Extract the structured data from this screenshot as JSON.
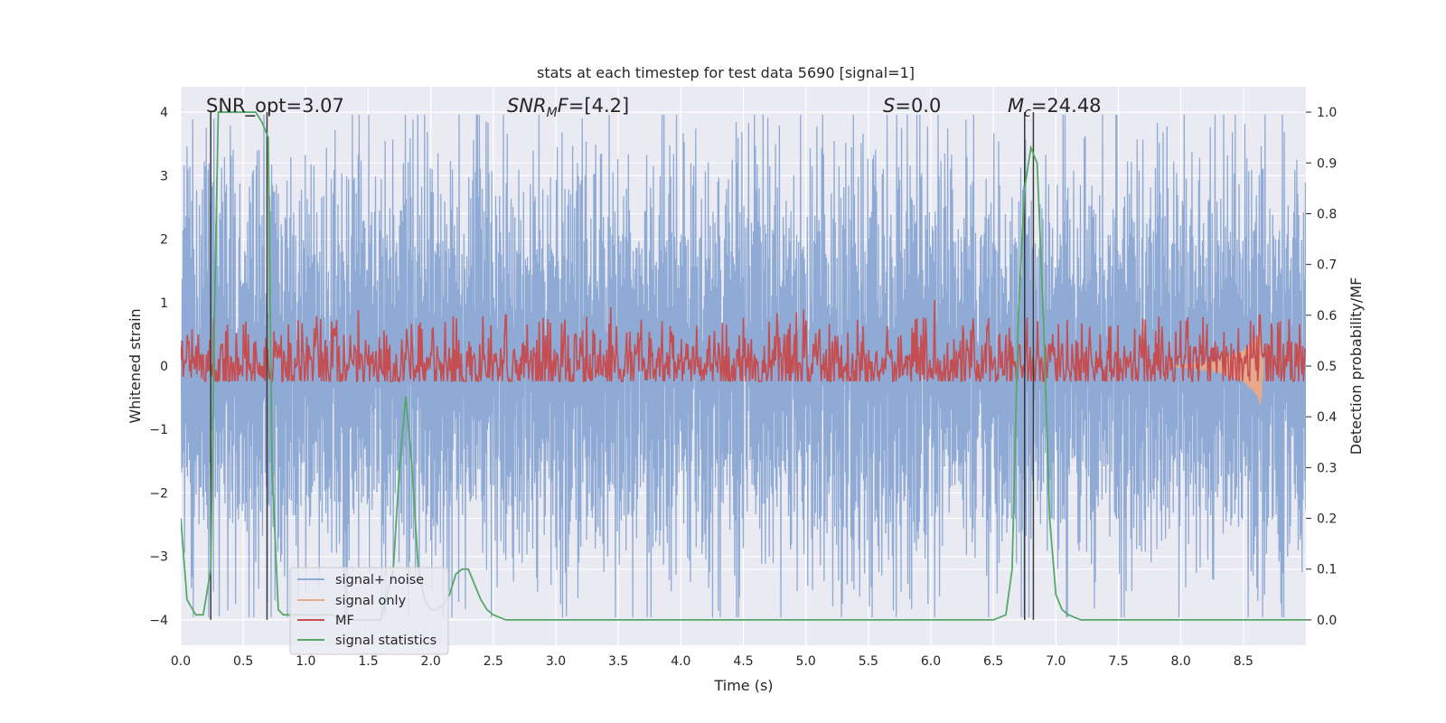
{
  "chart_data": {
    "type": "line",
    "title": "stats at each timestep for test data 5690 [signal=1]",
    "xlabel": "Time (s)",
    "ylabel": "Whitened strain",
    "y2label": "Detection probability/MF",
    "xlim": [
      0.0,
      9.0
    ],
    "ylim": [
      -4.4,
      4.4
    ],
    "y2lim": [
      -0.05,
      1.05
    ],
    "xticks": [
      "0.0",
      "0.5",
      "1.0",
      "1.5",
      "2.0",
      "2.5",
      "3.0",
      "3.5",
      "4.0",
      "4.5",
      "5.0",
      "5.5",
      "6.0",
      "6.5",
      "7.0",
      "7.5",
      "8.0",
      "8.5"
    ],
    "yticks": [
      "−4",
      "−3",
      "−2",
      "−1",
      "0",
      "1",
      "2",
      "3",
      "4"
    ],
    "y2ticks": [
      "0.0",
      "0.1",
      "0.2",
      "0.3",
      "0.4",
      "0.5",
      "0.6",
      "0.7",
      "0.8",
      "0.9",
      "1.0"
    ],
    "grid": true,
    "legend_position": "lower-left",
    "annotations": {
      "snr_opt": "SNR_opt=3.07",
      "snr_mf_name": "SNR",
      "snr_mf_sub": "M",
      "snr_mf_f": "F",
      "snr_mf_value": "=[4.2]",
      "s_name": "S",
      "s_value": "=0.0",
      "mc_name": "M",
      "mc_sub": "c",
      "mc_value": "=24.48"
    },
    "vertical_lines_x": [
      0.24,
      0.69,
      6.75,
      6.82
    ],
    "series": [
      {
        "name": "signal+ noise",
        "color": "#8faad4",
        "axis": "left",
        "kind": "noise",
        "envelope_typical": 2.3,
        "envelope_peak": 3.6,
        "samples_per_second": 260
      },
      {
        "name": "signal only",
        "color": "#e6a98a",
        "axis": "left",
        "kind": "chirp",
        "x": [
          7.9,
          8.1,
          8.3,
          8.5,
          8.6,
          8.64,
          8.66
        ],
        "amplitude": [
          0.01,
          0.05,
          0.1,
          0.25,
          0.45,
          0.65,
          0.0
        ]
      },
      {
        "name": "MF",
        "color": "#c44e52",
        "axis": "right",
        "kind": "noise",
        "mean": 0.5,
        "spread": 0.035,
        "peaks": [
          [
            1.42,
            0.61
          ],
          [
            2.6,
            0.6
          ],
          [
            6.03,
            0.63
          ],
          [
            8.63,
            0.6
          ]
        ]
      },
      {
        "name": "signal statistics",
        "color": "#55a868",
        "axis": "right",
        "x": [
          0.0,
          0.05,
          0.12,
          0.18,
          0.24,
          0.27,
          0.3,
          0.36,
          0.45,
          0.5,
          0.55,
          0.6,
          0.65,
          0.7,
          0.73,
          0.78,
          0.82,
          0.9,
          1.0,
          1.1,
          1.2,
          1.3,
          1.4,
          1.5,
          1.6,
          1.7,
          1.75,
          1.8,
          1.85,
          1.9,
          1.95,
          2.0,
          2.05,
          2.1,
          2.15,
          2.2,
          2.25,
          2.3,
          2.35,
          2.4,
          2.45,
          2.5,
          2.6,
          2.8,
          3.0,
          4.0,
          5.0,
          6.0,
          6.5,
          6.6,
          6.65,
          6.7,
          6.75,
          6.8,
          6.85,
          6.9,
          6.95,
          7.0,
          7.05,
          7.1,
          7.2,
          7.5,
          8.0,
          8.5,
          9.0
        ],
        "y": [
          0.2,
          0.04,
          0.01,
          0.01,
          0.1,
          0.6,
          1.0,
          1.0,
          1.0,
          1.0,
          1.0,
          1.0,
          0.98,
          0.95,
          0.3,
          0.02,
          0.01,
          0.01,
          0.01,
          0.01,
          0.01,
          0.0,
          0.0,
          0.0,
          0.0,
          0.1,
          0.3,
          0.44,
          0.3,
          0.1,
          0.04,
          0.02,
          0.02,
          0.03,
          0.05,
          0.09,
          0.1,
          0.1,
          0.07,
          0.04,
          0.02,
          0.01,
          0.0,
          0.0,
          0.0,
          0.0,
          0.0,
          0.0,
          0.0,
          0.01,
          0.1,
          0.6,
          0.85,
          0.93,
          0.9,
          0.6,
          0.2,
          0.05,
          0.02,
          0.01,
          0.0,
          0.0,
          0.0,
          0.0,
          0.0
        ]
      }
    ]
  }
}
